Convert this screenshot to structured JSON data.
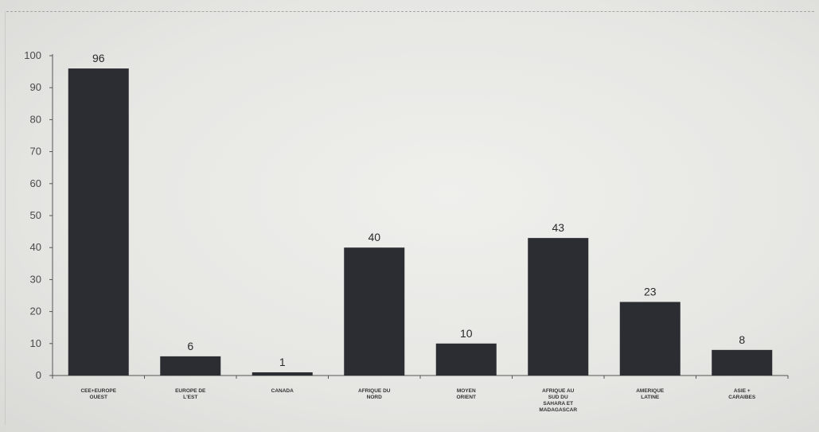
{
  "chart_data": {
    "type": "bar",
    "categories": [
      [
        "CEE+EUROPE",
        "OUEST"
      ],
      [
        "EUROPE DE",
        "L'EST"
      ],
      [
        "CANADA"
      ],
      [
        "AFRIQUE DU",
        "NORD"
      ],
      [
        "MOYEN",
        "ORIENT"
      ],
      [
        "AFRIQUE AU",
        "SUD DU",
        "SAHARA ET",
        "MADAGASCAR"
      ],
      [
        "AMERIQUE",
        "LATINE"
      ],
      [
        "ASIE +",
        "CARAIBES"
      ]
    ],
    "values": [
      96,
      6,
      1,
      40,
      10,
      43,
      23,
      8
    ],
    "data_labels": [
      "96",
      "6",
      "1",
      "40",
      "10",
      "43",
      "23",
      "8"
    ],
    "yticks": [
      "0",
      "10",
      "20",
      "30",
      "40",
      "50",
      "60",
      "70",
      "80",
      "90",
      "100"
    ],
    "ylim": [
      0,
      100
    ],
    "title": "",
    "xlabel": "",
    "ylabel": "",
    "grid": false,
    "bar_color": "#2c2c33"
  }
}
